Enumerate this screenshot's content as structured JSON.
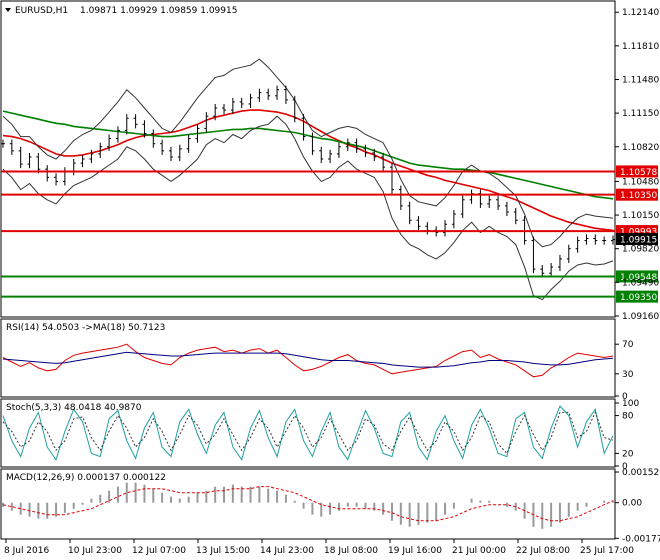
{
  "chart_data": {
    "type": "line",
    "title": "EURUSD,H1",
    "ohlc": "1.09871 1.09929 1.09859 1.09915",
    "price_axis": {
      "range": [
        1.0916,
        1.1224
      ],
      "ticks": [
        "1.12140",
        "1.11810",
        "1.11480",
        "1.11150",
        "1.10820",
        "1.10480",
        "1.10150",
        "1.09820",
        "1.09490",
        "1.09160"
      ],
      "tick_values": [
        1.1214,
        1.1181,
        1.1148,
        1.1115,
        1.1082,
        1.1048,
        1.1015,
        1.0982,
        1.0949,
        1.0916
      ]
    },
    "levels": [
      {
        "label": "1.10578",
        "value": 1.10578,
        "color": "#e00000"
      },
      {
        "label": "1.10350",
        "value": 1.1035,
        "color": "#e00000"
      },
      {
        "label": "1.09993",
        "value": 1.09993,
        "color": "#e00000"
      },
      {
        "label": "1.09915",
        "value": 1.09915,
        "color": "#000000"
      },
      {
        "label": "1.09548",
        "value": 1.09548,
        "color": "#008000"
      },
      {
        "label": "1.09350",
        "value": 1.0935,
        "color": "#008000"
      }
    ],
    "x_axis_labels": [
      "8 Jul 2016",
      "10 Jul 23:00",
      "12 Jul 07:00",
      "13 Jul 15:00",
      "14 Jul 23:00",
      "18 Jul 08:00",
      "19 Jul 16:00",
      "21 Jul 00:00",
      "22 Jul 08:00",
      "25 Jul 17:00"
    ],
    "price_series": [
      {
        "name": "close",
        "color": "#000000",
        "values": [
          1.1085,
          1.1078,
          1.1065,
          1.1072,
          1.106,
          1.1052,
          1.1048,
          1.1058,
          1.1066,
          1.107,
          1.1075,
          1.1082,
          1.109,
          1.1098,
          1.111,
          1.1104,
          1.1095,
          1.1085,
          1.1078,
          1.1072,
          1.108,
          1.109,
          1.11,
          1.1112,
          1.112,
          1.1118,
          1.1126,
          1.1124,
          1.113,
          1.1135,
          1.1132,
          1.1138,
          1.1128,
          1.111,
          1.1092,
          1.1078,
          1.107,
          1.1075,
          1.1082,
          1.1086,
          1.108,
          1.1076,
          1.1072,
          1.1062,
          1.104,
          1.1024,
          1.101,
          1.1004,
          1.1,
          1.0998,
          1.1006,
          1.1016,
          1.103,
          1.1036,
          1.1026,
          1.103,
          1.1024,
          1.1018,
          1.101,
          1.099,
          1.0962,
          1.0958,
          1.0964,
          1.0972,
          1.0982,
          1.099,
          1.0992,
          1.099,
          1.099,
          1.0991
        ]
      },
      {
        "name": "ma-red",
        "color": "#e00000",
        "values": [
          1.1093,
          1.1092,
          1.109,
          1.1087,
          1.1083,
          1.1079,
          1.1075,
          1.1073,
          1.1073,
          1.1074,
          1.1076,
          1.1078,
          1.1081,
          1.1084,
          1.1088,
          1.1091,
          1.1093,
          1.1094,
          1.1095,
          1.1096,
          1.1098,
          1.1101,
          1.1104,
          1.1108,
          1.1111,
          1.1113,
          1.1115,
          1.1117,
          1.1118,
          1.1118,
          1.1117,
          1.1116,
          1.1114,
          1.1111,
          1.1107,
          1.1102,
          1.1097,
          1.1092,
          1.1088,
          1.1084,
          1.1081,
          1.1077,
          1.1074,
          1.107,
          1.1066,
          1.1063,
          1.106,
          1.1057,
          1.1054,
          1.1052,
          1.1049,
          1.1047,
          1.1045,
          1.1043,
          1.1041,
          1.1039,
          1.1036,
          1.1033,
          1.103,
          1.1026,
          1.1022,
          1.1018,
          1.1014,
          1.1011,
          1.1008,
          1.1006,
          1.1004,
          1.1002,
          1.1001,
          1.1
        ]
      },
      {
        "name": "ma-green",
        "color": "#008000",
        "values": [
          1.1117,
          1.1115,
          1.1113,
          1.1111,
          1.1109,
          1.1107,
          1.1105,
          1.1104,
          1.1102,
          1.1101,
          1.11,
          1.1099,
          1.1098,
          1.1097,
          1.1096,
          1.1095,
          1.1094,
          1.1093,
          1.1092,
          1.1092,
          1.1093,
          1.1094,
          1.1095,
          1.1096,
          1.1097,
          1.1098,
          1.1099,
          1.1099,
          1.11,
          1.11,
          1.1099,
          1.1098,
          1.1097,
          1.1096,
          1.1094,
          1.1092,
          1.109,
          1.1089,
          1.1087,
          1.1085,
          1.1083,
          1.1081,
          1.1078,
          1.1075,
          1.1072,
          1.1069,
          1.1066,
          1.1064,
          1.1063,
          1.1062,
          1.1061,
          1.106,
          1.106,
          1.1059,
          1.1058,
          1.1057,
          1.1055,
          1.1053,
          1.1051,
          1.1049,
          1.1047,
          1.1045,
          1.1043,
          1.1041,
          1.1039,
          1.1037,
          1.1035,
          1.1033,
          1.1032,
          1.1031
        ]
      },
      {
        "name": "bb-upper",
        "color": "#333333",
        "values": [
          1.1112,
          1.1104,
          1.1092,
          1.1092,
          1.1082,
          1.1074,
          1.107,
          1.1078,
          1.1088,
          1.1094,
          1.1098,
          1.1106,
          1.1116,
          1.1126,
          1.1138,
          1.113,
          1.112,
          1.111,
          1.11,
          1.1096,
          1.1106,
          1.1118,
          1.113,
          1.114,
          1.115,
          1.1152,
          1.1158,
          1.116,
          1.1162,
          1.1168,
          1.116,
          1.115,
          1.114,
          1.1128,
          1.1112,
          1.1098,
          1.1092,
          1.1096,
          1.11,
          1.1102,
          1.11,
          1.1094,
          1.109,
          1.1086,
          1.107,
          1.105,
          1.1034,
          1.1028,
          1.1026,
          1.1024,
          1.1032,
          1.1044,
          1.1058,
          1.1064,
          1.1058,
          1.1056,
          1.105,
          1.1042,
          1.1034,
          1.1016,
          1.0992,
          1.0984,
          1.0986,
          1.0994,
          1.1004,
          1.1012,
          1.1016,
          1.1014,
          1.1013,
          1.1012
        ]
      },
      {
        "name": "bb-lower",
        "color": "#333333",
        "values": [
          1.106,
          1.1052,
          1.104,
          1.1046,
          1.1036,
          1.103,
          1.1026,
          1.1036,
          1.1044,
          1.1048,
          1.1052,
          1.1058,
          1.1064,
          1.107,
          1.1082,
          1.1078,
          1.107,
          1.106,
          1.1054,
          1.1048,
          1.1054,
          1.1062,
          1.107,
          1.1084,
          1.109,
          1.1086,
          1.1094,
          1.109,
          1.1098,
          1.1102,
          1.1104,
          1.1112,
          1.1104,
          1.109,
          1.1072,
          1.1058,
          1.1048,
          1.1052,
          1.1062,
          1.1068,
          1.106,
          1.1056,
          1.1052,
          1.1038,
          1.1012,
          1.0996,
          1.0986,
          1.0982,
          1.0976,
          1.0972,
          1.0978,
          1.0988,
          1.1,
          1.1008,
          1.0998,
          1.1004,
          1.0998,
          1.0994,
          1.0986,
          1.0964,
          1.0936,
          1.0932,
          1.0942,
          1.095,
          1.096,
          1.0966,
          1.0968,
          1.0966,
          1.0967,
          1.097
        ]
      }
    ],
    "rsi": {
      "label": "RSI(14) 54.0503  ->MA(18) 50.7123",
      "range": [
        0,
        100
      ],
      "ticks": [
        "70",
        "30",
        "0"
      ],
      "tick_values": [
        70,
        30,
        0
      ],
      "series": [
        {
          "name": "rsi",
          "color": "#e00000",
          "values": [
            52,
            46,
            40,
            45,
            38,
            34,
            36,
            48,
            55,
            58,
            60,
            62,
            64,
            66,
            70,
            60,
            52,
            48,
            44,
            42,
            52,
            58,
            62,
            64,
            66,
            60,
            62,
            58,
            62,
            64,
            58,
            62,
            52,
            42,
            34,
            36,
            40,
            46,
            52,
            56,
            48,
            44,
            42,
            36,
            30,
            32,
            34,
            36,
            38,
            40,
            48,
            54,
            60,
            62,
            52,
            56,
            50,
            46,
            42,
            34,
            26,
            28,
            38,
            44,
            52,
            58,
            56,
            54,
            52,
            54
          ]
        },
        {
          "name": "rsi-ma",
          "color": "#000080",
          "values": [
            50,
            49,
            48,
            47,
            46,
            45,
            44,
            45,
            47,
            49,
            51,
            53,
            55,
            57,
            59,
            58,
            57,
            56,
            55,
            54,
            54,
            55,
            56,
            57,
            58,
            58,
            58,
            58,
            58,
            58,
            58,
            58,
            57,
            55,
            53,
            51,
            49,
            48,
            48,
            48,
            47,
            46,
            45,
            44,
            42,
            41,
            40,
            39,
            39,
            39,
            40,
            41,
            43,
            45,
            46,
            48,
            48,
            48,
            47,
            46,
            44,
            43,
            42,
            42,
            43,
            45,
            47,
            49,
            50,
            51
          ]
        }
      ]
    },
    "stoch": {
      "label": "Stoch(5,3,3) 48.0418 40.9870",
      "range": [
        0,
        100
      ],
      "ticks": [
        "100",
        "80",
        "20",
        "0"
      ],
      "tick_values": [
        100,
        80,
        20,
        0
      ],
      "series": [
        {
          "name": "stoch-main",
          "color": "#20a0a0",
          "values": [
            80,
            40,
            15,
            60,
            85,
            30,
            10,
            55,
            90,
            70,
            20,
            15,
            75,
            88,
            40,
            12,
            60,
            85,
            30,
            15,
            70,
            90,
            50,
            20,
            65,
            85,
            30,
            10,
            60,
            88,
            45,
            15,
            70,
            90,
            40,
            15,
            55,
            85,
            30,
            10,
            50,
            88,
            60,
            20,
            15,
            70,
            85,
            30,
            10,
            55,
            80,
            40,
            12,
            65,
            90,
            60,
            20,
            15,
            75,
            85,
            30,
            12,
            60,
            95,
            80,
            30,
            70,
            90,
            20,
            48
          ]
        },
        {
          "name": "stoch-signal",
          "color": "#333333",
          "values": [
            70,
            55,
            30,
            40,
            70,
            55,
            25,
            40,
            75,
            78,
            45,
            25,
            55,
            80,
            60,
            30,
            45,
            75,
            55,
            25,
            50,
            80,
            65,
            35,
            50,
            75,
            50,
            25,
            45,
            75,
            60,
            30,
            55,
            80,
            60,
            30,
            45,
            75,
            50,
            25,
            40,
            75,
            65,
            35,
            25,
            55,
            78,
            50,
            25,
            40,
            70,
            55,
            25,
            45,
            80,
            70,
            35,
            20,
            55,
            80,
            50,
            25,
            45,
            85,
            85,
            45,
            55,
            85,
            45,
            41
          ]
        }
      ]
    },
    "macd": {
      "label": "MACD(12,26,9) 0.000137 0.000122",
      "range": [
        -0.00176,
        0.00153
      ],
      "ticks": [
        "0.001529",
        "0.00",
        "-0.001776"
      ],
      "tick_values": [
        0.001529,
        0,
        -0.001776
      ],
      "histogram_color": "#999999",
      "signal_color": "#e00000",
      "histogram": [
        -0.0002,
        -0.0004,
        -0.0006,
        -0.0007,
        -0.0008,
        -0.0008,
        -0.0007,
        -0.0005,
        -0.0003,
        -0.0001,
        0.0002,
        0.0004,
        0.0006,
        0.0008,
        0.001,
        0.001,
        0.0009,
        0.0007,
        0.0005,
        0.0003,
        0.0002,
        0.0003,
        0.0005,
        0.0006,
        0.0008,
        0.0008,
        0.0009,
        0.0008,
        0.0008,
        0.0008,
        0.0007,
        0.0006,
        0.0004,
        0.0001,
        -0.0003,
        -0.0006,
        -0.0007,
        -0.0006,
        -0.0004,
        -0.0002,
        -0.0002,
        -0.0003,
        -0.0004,
        -0.0006,
        -0.0009,
        -0.0011,
        -0.0012,
        -0.0011,
        -0.001,
        -0.0009,
        -0.0006,
        -0.0003,
        0.0,
        0.0002,
        0.0001,
        0.0001,
        0.0,
        -0.0002,
        -0.0004,
        -0.0008,
        -0.0012,
        -0.0013,
        -0.0012,
        -0.001,
        -0.0007,
        -0.0004,
        -0.0002,
        0.0,
        0.0001,
        0.0001
      ],
      "signal": [
        -0.0001,
        -0.0002,
        -0.0003,
        -0.0004,
        -0.0005,
        -0.0006,
        -0.0006,
        -0.0006,
        -0.0005,
        -0.0004,
        -0.0003,
        -0.0001,
        0.0001,
        0.0003,
        0.0005,
        0.0006,
        0.0007,
        0.0007,
        0.0007,
        0.0006,
        0.0005,
        0.0005,
        0.0005,
        0.0005,
        0.0006,
        0.0006,
        0.0007,
        0.0007,
        0.0007,
        0.0008,
        0.0008,
        0.0007,
        0.0006,
        0.0005,
        0.0003,
        0.0001,
        -0.0001,
        -0.0002,
        -0.0003,
        -0.0003,
        -0.0003,
        -0.0003,
        -0.0003,
        -0.0004,
        -0.0005,
        -0.0007,
        -0.0008,
        -0.0009,
        -0.0009,
        -0.0009,
        -0.0008,
        -0.0007,
        -0.0005,
        -0.0003,
        -0.0002,
        -0.0001,
        -0.0001,
        -0.0001,
        -0.0002,
        -0.0004,
        -0.0006,
        -0.0008,
        -0.0009,
        -0.0009,
        -0.0008,
        -0.0007,
        -0.0005,
        -0.0003,
        -0.0001,
        0.0001
      ]
    }
  }
}
